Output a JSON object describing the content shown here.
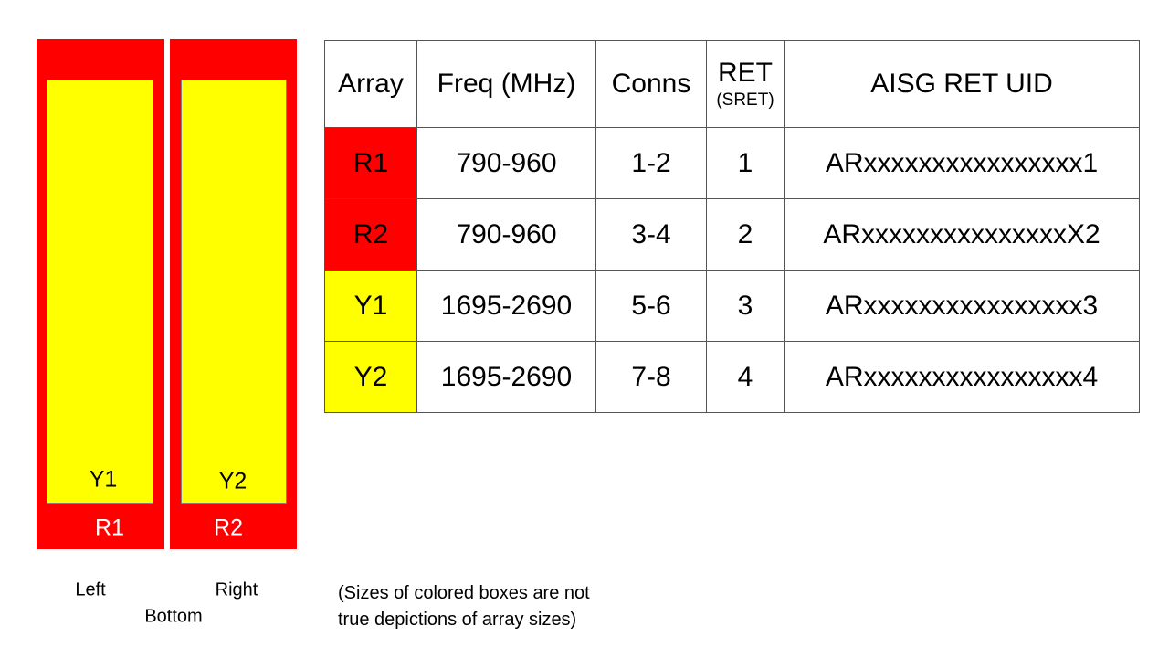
{
  "diagram": {
    "arrays": [
      {
        "outer": "R1",
        "inner": "Y1"
      },
      {
        "outer": "R2",
        "inner": "Y2"
      }
    ],
    "labels": {
      "left": "Left",
      "right": "Right",
      "bottom": "Bottom"
    },
    "colors": {
      "red": "#ff0000",
      "yellow": "#ffff00"
    }
  },
  "table": {
    "headers": [
      "Array",
      "Freq (MHz)",
      "Conns",
      "RET",
      "AISG RET UID"
    ],
    "ret_sub": "(SRET)",
    "rows": [
      {
        "array": "R1",
        "color": "#ff0000",
        "freq": "790-960",
        "conns": "1-2",
        "ret": "1",
        "uid": "ARxxxxxxxxxxxxxxxx1"
      },
      {
        "array": "R2",
        "color": "#ff0000",
        "freq": "790-960",
        "conns": "3-4",
        "ret": "2",
        "uid": "ARxxxxxxxxxxxxxxxX2"
      },
      {
        "array": "Y1",
        "color": "#ffff00",
        "freq": "1695-2690",
        "conns": "5-6",
        "ret": "3",
        "uid": "ARxxxxxxxxxxxxxxxx3"
      },
      {
        "array": "Y2",
        "color": "#ffff00",
        "freq": "1695-2690",
        "conns": "7-8",
        "ret": "4",
        "uid": "ARxxxxxxxxxxxxxxxx4"
      }
    ]
  },
  "note": {
    "line1": "(Sizes of colored boxes are not",
    "line2": "true depictions of array sizes)"
  }
}
